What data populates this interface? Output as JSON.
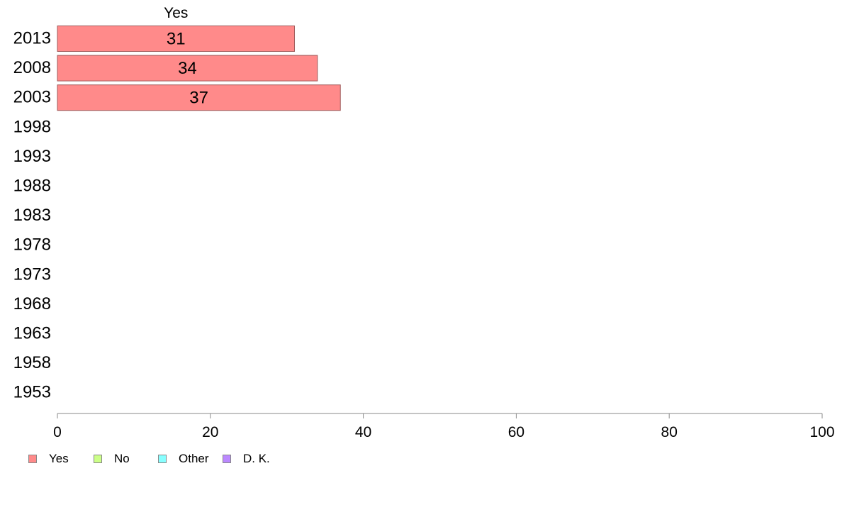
{
  "chart_data": {
    "type": "bar",
    "orientation": "horizontal",
    "stacked": true,
    "categories": [
      "2013",
      "2008",
      "2003",
      "1998",
      "1993",
      "1988",
      "1983",
      "1978",
      "1973",
      "1968",
      "1963",
      "1958",
      "1953"
    ],
    "series": [
      {
        "name": "Yes",
        "color": "#ff8a8a",
        "values": [
          31,
          34,
          37,
          null,
          null,
          null,
          null,
          null,
          null,
          null,
          null,
          null,
          null
        ]
      },
      {
        "name": "No",
        "color": "#ccff88",
        "values": [
          null,
          null,
          null,
          null,
          null,
          null,
          null,
          null,
          null,
          null,
          null,
          null,
          null
        ]
      },
      {
        "name": "Other",
        "color": "#88ffff",
        "values": [
          null,
          null,
          null,
          null,
          null,
          null,
          null,
          null,
          null,
          null,
          null,
          null,
          null
        ]
      },
      {
        "name": "D. K.",
        "color": "#bb88ff",
        "values": [
          null,
          null,
          null,
          null,
          null,
          null,
          null,
          null,
          null,
          null,
          null,
          null,
          null
        ]
      }
    ],
    "top_label": "Yes",
    "xlim": [
      0,
      100
    ],
    "xticks": [
      0,
      20,
      40,
      60,
      80,
      100
    ],
    "grid": false,
    "legend_position": "bottom-left"
  }
}
